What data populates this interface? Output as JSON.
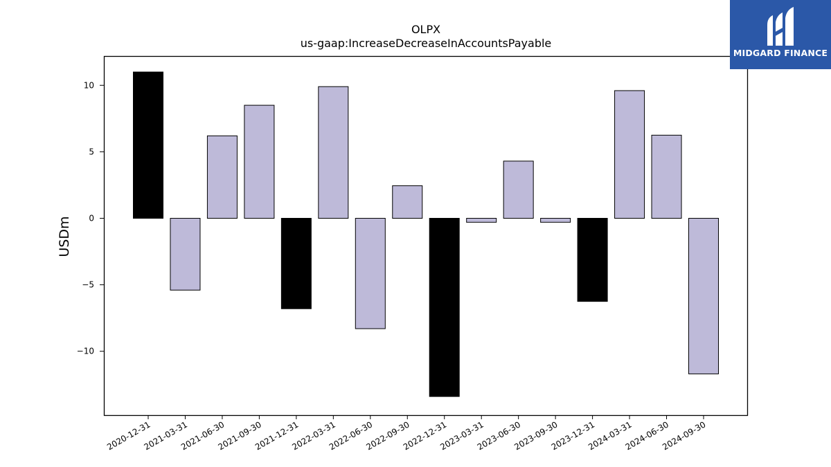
{
  "chart_data": {
    "type": "bar",
    "title": "OLPX",
    "subtitle": "us-gaap:IncreaseDecreaseInAccountsPayable",
    "ylabel": "USDm",
    "xlabel": "",
    "ylim": [
      -14.8,
      12.2
    ],
    "yticks": [
      10,
      5,
      0,
      -5,
      -10
    ],
    "ytick_labels": [
      "10",
      "5",
      "0",
      "−5",
      "−10"
    ],
    "categories": [
      "2020-12-31",
      "2021-03-31",
      "2021-06-30",
      "2021-09-30",
      "2021-12-31",
      "2022-03-31",
      "2022-06-30",
      "2022-09-30",
      "2022-12-31",
      "2023-03-31",
      "2023-06-30",
      "2023-09-30",
      "2023-12-31",
      "2024-03-31",
      "2024-06-30",
      "2024-09-30"
    ],
    "values": [
      11.0,
      -5.4,
      6.2,
      8.5,
      -6.8,
      9.9,
      -8.3,
      2.45,
      -13.4,
      -0.3,
      4.3,
      -0.3,
      -6.25,
      9.6,
      6.25,
      -11.7
    ],
    "bar_colors": [
      "#000000",
      "#bebad9",
      "#bebad9",
      "#bebad9",
      "#000000",
      "#bebad9",
      "#bebad9",
      "#bebad9",
      "#000000",
      "#bebad9",
      "#bebad9",
      "#bebad9",
      "#000000",
      "#bebad9",
      "#bebad9",
      "#bebad9"
    ],
    "grid": false,
    "legend": "none"
  },
  "logo": {
    "text": "MIDGARD FINANCE",
    "icon": "midgard-logo-icon",
    "background": "#2b58a8"
  }
}
